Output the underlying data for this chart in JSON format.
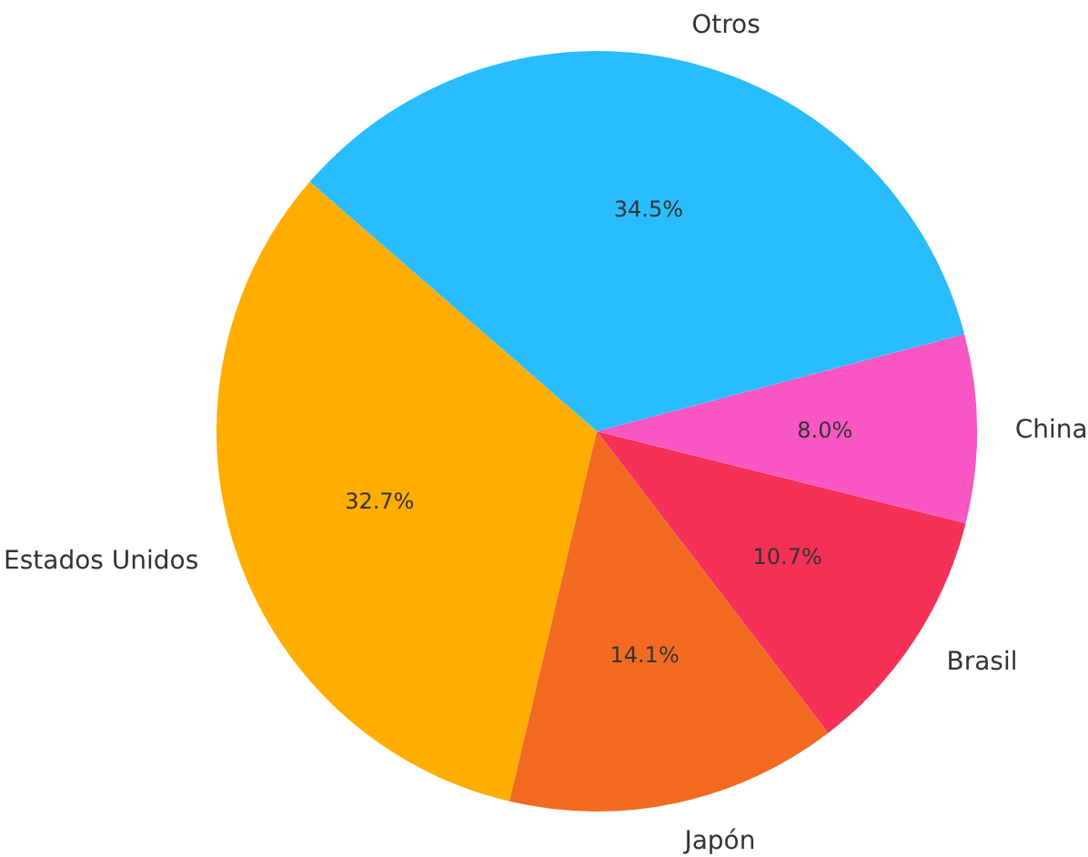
{
  "chart_data": {
    "type": "pie",
    "categories": [
      "Estados Unidos",
      "Japón",
      "Brasil",
      "China",
      "Otros"
    ],
    "values": [
      32.7,
      14.1,
      10.7,
      8.0,
      34.5
    ],
    "value_labels": [
      "32.7%",
      "14.1%",
      "10.7%",
      "8.0%",
      "34.5%"
    ],
    "colors": [
      "#ffae00",
      "#f26b21",
      "#f53157",
      "#f957c3",
      "#29bdfd"
    ]
  }
}
